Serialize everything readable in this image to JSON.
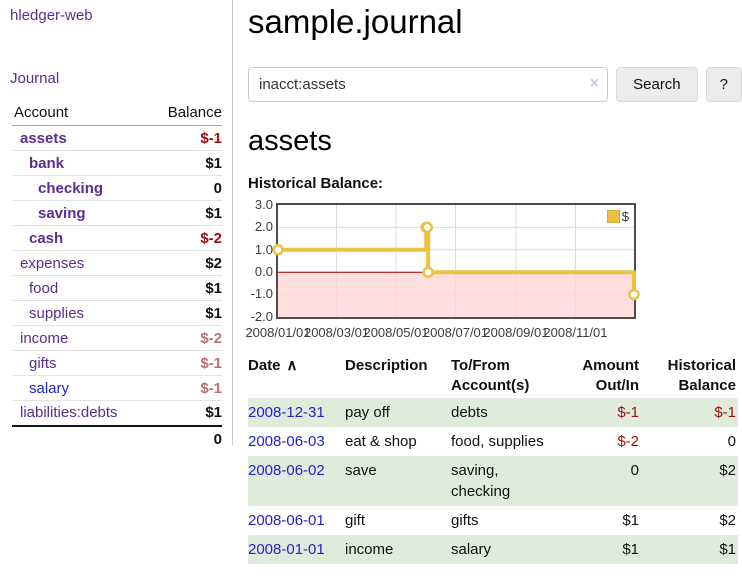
{
  "brand": "hledger-web",
  "nav": {
    "journal": "Journal"
  },
  "sidebar": {
    "header": {
      "account": "Account",
      "balance": "Balance"
    },
    "accounts": [
      {
        "name": "assets",
        "balance": "$-1"
      },
      {
        "name": "bank",
        "balance": "$1"
      },
      {
        "name": "checking",
        "balance": "0"
      },
      {
        "name": "saving",
        "balance": "$1"
      },
      {
        "name": "cash",
        "balance": "$-2"
      },
      {
        "name": "expenses",
        "balance": "$2"
      },
      {
        "name": "food",
        "balance": "$1"
      },
      {
        "name": "supplies",
        "balance": "$1"
      },
      {
        "name": "income",
        "balance": "$-2"
      },
      {
        "name": "gifts",
        "balance": "$-1"
      },
      {
        "name": "salary",
        "balance": "$-1"
      },
      {
        "name": "liabilities:debts",
        "balance": "$1"
      }
    ],
    "total": "0"
  },
  "main": {
    "title": "sample.journal",
    "search": {
      "value": "inacct:assets",
      "clear_icon": "×",
      "search_button": "Search",
      "help_button": "?"
    },
    "account_heading": "assets",
    "chart_label": "Historical Balance:"
  },
  "chart_data": {
    "type": "line",
    "step": true,
    "title": "Historical Balance",
    "x_start": "2008-01-01",
    "x_end": "2008-12-31",
    "ylim": [
      -2,
      3
    ],
    "yticks": [
      "3.0",
      "2.0",
      "1.0",
      "0.0",
      "-1.0",
      "-2.0"
    ],
    "xticks": [
      "2008/01/01",
      "2008/03/01",
      "2008/05/01",
      "2008/07/01",
      "2008/09/01",
      "2008/11/01"
    ],
    "series": [
      {
        "name": "$",
        "color": "#EDC240",
        "points": [
          [
            "2008-01-01",
            1
          ],
          [
            "2008-06-01",
            2
          ],
          [
            "2008-06-02",
            2
          ],
          [
            "2008-06-03",
            0
          ],
          [
            "2008-12-31",
            -1
          ]
        ]
      }
    ],
    "grid_color": "#DCDCDC",
    "negative_region_color": "#FFD6D6",
    "zero_line_color": "#A40000",
    "legend": {
      "label": "$",
      "swatch_color": "#EDC240",
      "position": "top-right"
    }
  },
  "register": {
    "columns": {
      "date": "Date",
      "description": "Description",
      "accounts": "To/From Account(s)",
      "amount": "Amount Out/In",
      "balance": "Historical Balance"
    },
    "sort_icon": "∧",
    "rows": [
      {
        "date": "2008-12-31",
        "description": "pay off",
        "accounts": "debts",
        "amount": "$-1",
        "balance": "$-1"
      },
      {
        "date": "2008-06-03",
        "description": "eat & shop",
        "accounts": "food, supplies",
        "amount": "$-2",
        "balance": "0"
      },
      {
        "date": "2008-06-02",
        "description": "save",
        "accounts": "saving,\nchecking",
        "amount": "0",
        "balance": "$2"
      },
      {
        "date": "2008-06-01",
        "description": "gift",
        "accounts": "gifts",
        "amount": "$1",
        "balance": "$2"
      },
      {
        "date": "2008-01-01",
        "description": "income",
        "accounts": "salary",
        "amount": "$1",
        "balance": "$1"
      }
    ]
  },
  "colors": {
    "link_purple": "#5C2D91",
    "link_blue": "#2323CC",
    "negative_strong": "#A01010",
    "negative_soft": "#B87272",
    "row_stripe_green": "#DFECDB"
  }
}
